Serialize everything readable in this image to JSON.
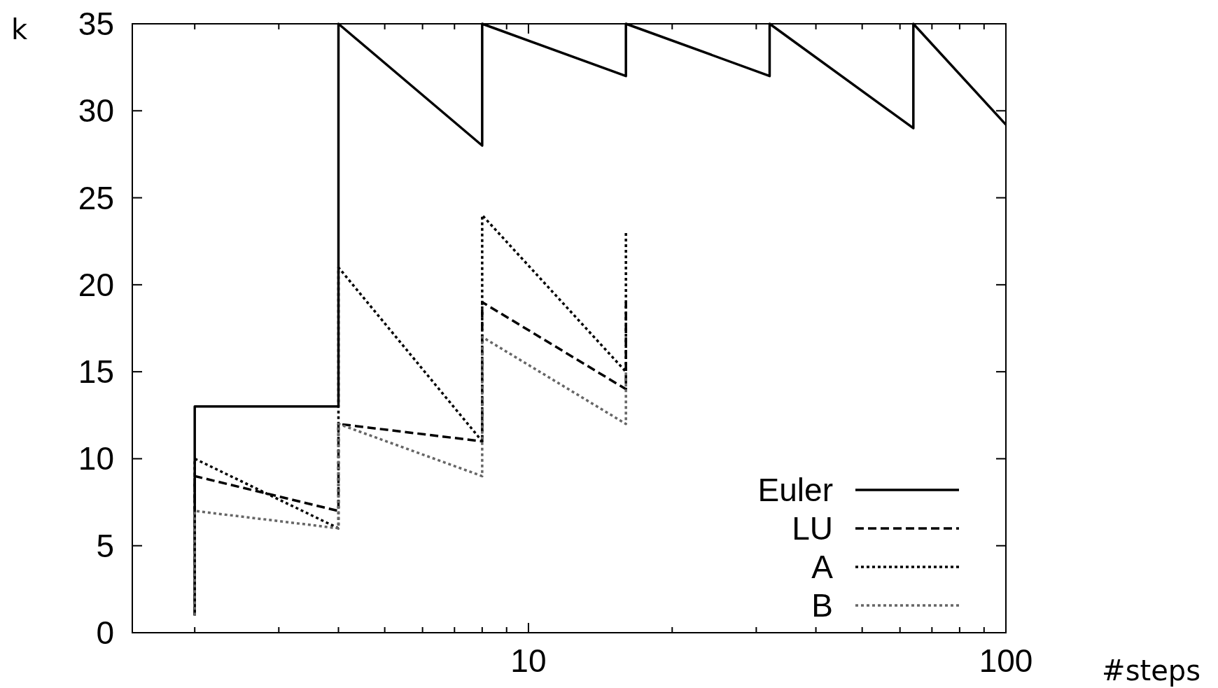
{
  "chart_data": {
    "type": "line",
    "xlabel": "#steps",
    "ylabel": "k",
    "log": "x",
    "xlim": [
      1.48,
      100
    ],
    "ylim": [
      0,
      35
    ],
    "xticks": [
      {
        "value": 2,
        "label": null
      },
      {
        "value": 3,
        "label": null
      },
      {
        "value": 4,
        "label": null
      },
      {
        "value": 5,
        "label": null
      },
      {
        "value": 6,
        "label": null
      },
      {
        "value": 7,
        "label": null
      },
      {
        "value": 8,
        "label": null
      },
      {
        "value": 9,
        "label": null
      },
      10,
      {
        "value": 20,
        "label": null
      },
      {
        "value": 30,
        "label": null
      },
      {
        "value": 40,
        "label": null
      },
      {
        "value": 50,
        "label": null
      },
      {
        "value": 60,
        "label": null
      },
      {
        "value": 70,
        "label": null
      },
      {
        "value": 80,
        "label": null
      },
      {
        "value": 90,
        "label": null
      },
      100
    ],
    "yticks": [
      0,
      5,
      10,
      15,
      20,
      25,
      30,
      35
    ],
    "grid": false,
    "legend": "bottom right",
    "marker": "none",
    "series": [
      {
        "name": "Euler",
        "color": "#000000",
        "line_style": "solid",
        "x": [
          2,
          2,
          4,
          4,
          8,
          8,
          16,
          16,
          32,
          32,
          64,
          64,
          100
        ],
        "values": [
          1,
          13,
          13,
          35,
          28,
          35,
          32,
          35,
          32,
          35,
          29,
          35,
          29.2
        ]
      },
      {
        "name": "LU",
        "color": "#000000",
        "line_style": "dashed",
        "x": [
          2,
          2,
          4,
          4,
          8,
          8,
          16,
          16
        ],
        "values": [
          1,
          9,
          7,
          12,
          11,
          19,
          14,
          19
        ]
      },
      {
        "name": "A",
        "color": "#000000",
        "line_style": "dotted",
        "x": [
          2,
          2,
          4,
          4,
          8,
          8,
          16,
          16
        ],
        "values": [
          1,
          10,
          6,
          21,
          11,
          24,
          15,
          23
        ]
      },
      {
        "name": "B",
        "color": "#666666",
        "line_style": "dotted",
        "x": [
          2,
          2,
          4,
          4,
          8,
          8,
          16,
          16
        ],
        "values": [
          1,
          7,
          6,
          12,
          9,
          17,
          12,
          15
        ]
      }
    ]
  }
}
